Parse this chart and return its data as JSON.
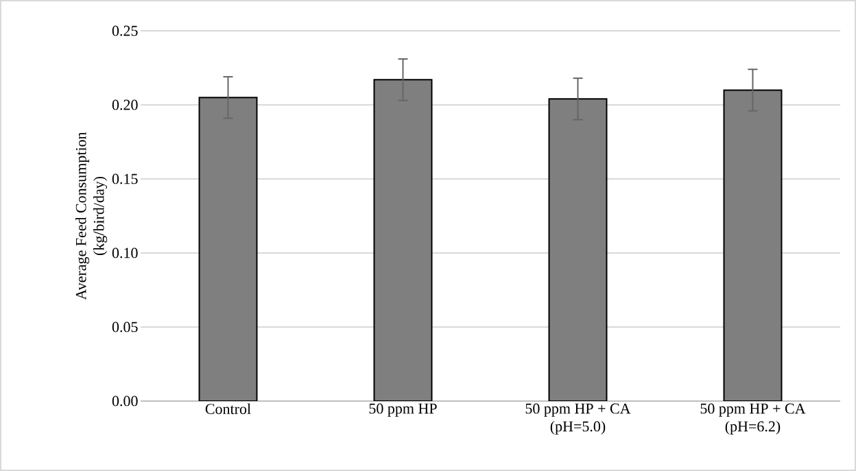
{
  "chart_data": {
    "type": "bar",
    "ylabel": "Average Feed Consumption\n(kg/bird/day)",
    "categories": [
      "Control",
      "50 ppm HP",
      "50 ppm HP + CA\n(pH=5.0)",
      "50 ppm HP + CA\n(pH=6.2)"
    ],
    "values": [
      0.205,
      0.217,
      0.204,
      0.21
    ],
    "errors": [
      0.014,
      0.014,
      0.014,
      0.014
    ],
    "color": "#7f7f7f",
    "ylim": [
      0,
      0.25
    ],
    "yticks": [
      {
        "value": 0,
        "label": "0.00"
      },
      {
        "value": 0.05,
        "label": "0.05"
      },
      {
        "value": 0.1,
        "label": "0.10"
      },
      {
        "value": 0.15,
        "label": "0.15"
      },
      {
        "value": 0.2,
        "label": "0.20"
      },
      {
        "value": 0.25,
        "label": "0.25"
      }
    ],
    "grid": "y"
  }
}
